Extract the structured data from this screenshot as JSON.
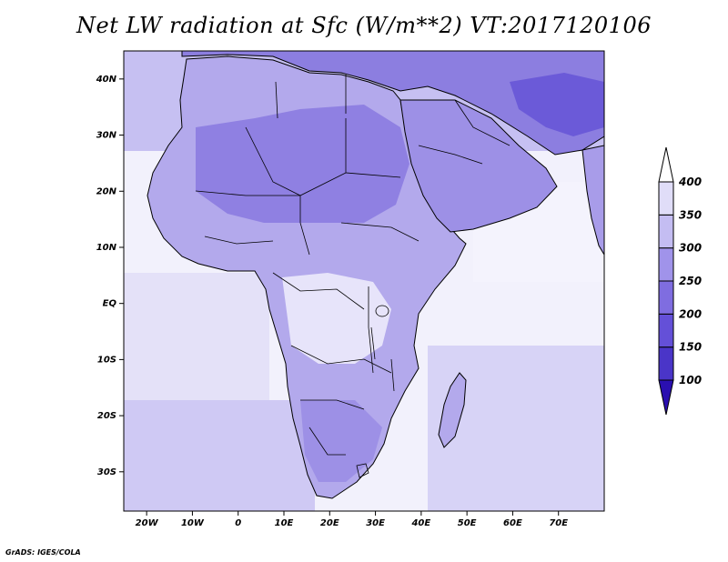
{
  "title": "Net LW radiation at Sfc (W/m**2) VT:2017120106",
  "credit": "GrADS: IGES/COLA",
  "map": {
    "lon_range": [
      -25,
      80
    ],
    "lat_range": [
      -37,
      45
    ],
    "x_ticks": [
      {
        "value": -20,
        "label": "20W"
      },
      {
        "value": -10,
        "label": "10W"
      },
      {
        "value": 0,
        "label": "0"
      },
      {
        "value": 10,
        "label": "10E"
      },
      {
        "value": 20,
        "label": "20E"
      },
      {
        "value": 30,
        "label": "30E"
      },
      {
        "value": 40,
        "label": "40E"
      },
      {
        "value": 50,
        "label": "50E"
      },
      {
        "value": 60,
        "label": "60E"
      },
      {
        "value": 70,
        "label": "70E"
      }
    ],
    "y_ticks": [
      {
        "value": 40,
        "label": "40N"
      },
      {
        "value": 30,
        "label": "30N"
      },
      {
        "value": 20,
        "label": "20N"
      },
      {
        "value": 10,
        "label": "10N"
      },
      {
        "value": 0,
        "label": "EQ"
      },
      {
        "value": -10,
        "label": "10S"
      },
      {
        "value": -20,
        "label": "20S"
      },
      {
        "value": -30,
        "label": "30S"
      }
    ]
  },
  "colorbar": {
    "levels": [
      "100",
      "150",
      "200",
      "250",
      "300",
      "350",
      "400"
    ],
    "colors": [
      "#2a0fb0",
      "#4a35c8",
      "#6450d8",
      "#7f6de0",
      "#a093ea",
      "#c4bdf2",
      "#e0ddf8",
      "#f4f3fd"
    ],
    "max_arrow_color": "#ffffff",
    "min_arrow_color": "#2a0fb0"
  }
}
